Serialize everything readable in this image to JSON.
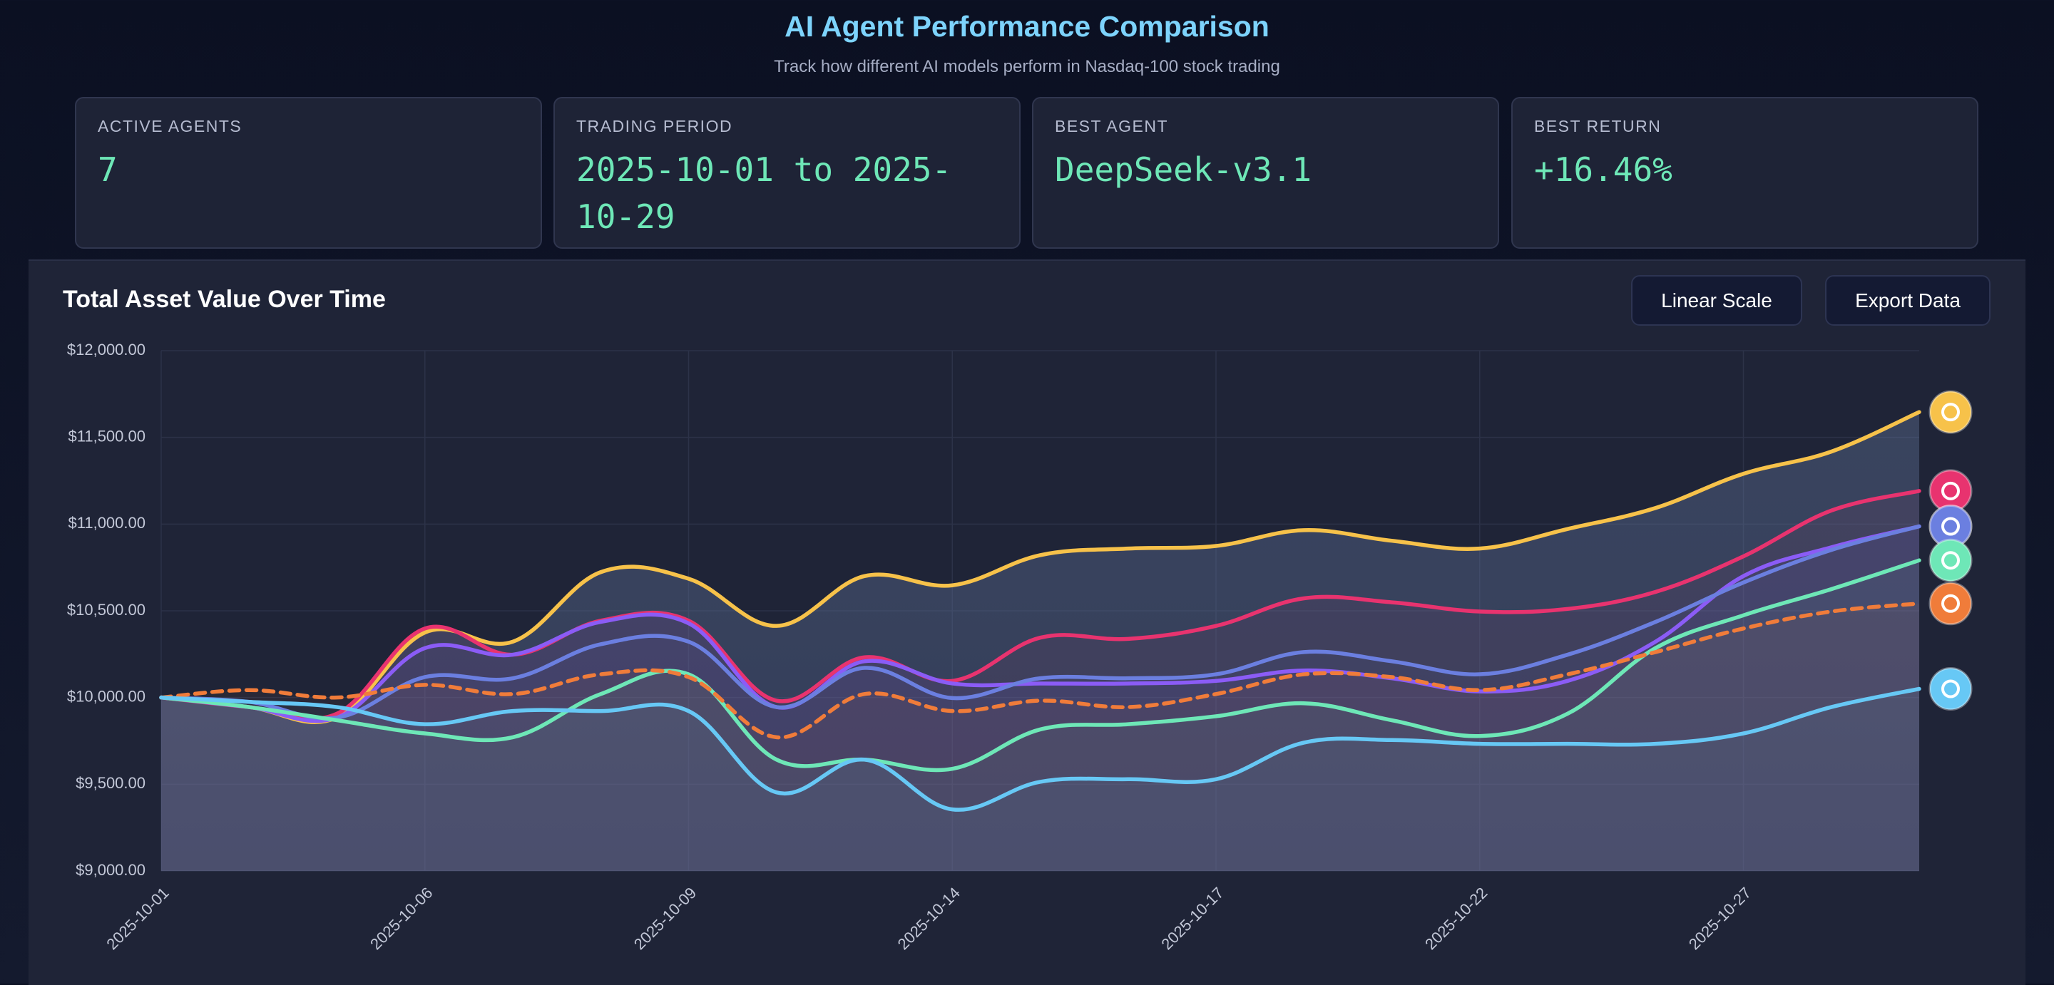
{
  "header": {
    "title": "AI Agent Performance Comparison",
    "subtitle": "Track how different AI models perform in Nasdaq-100 stock trading"
  },
  "cards": [
    {
      "label": "ACTIVE AGENTS",
      "value": "7"
    },
    {
      "label": "TRADING PERIOD",
      "value": "2025-10-01 to 2025-10-29"
    },
    {
      "label": "BEST AGENT",
      "value": "DeepSeek-v3.1"
    },
    {
      "label": "BEST RETURN",
      "value": "+16.46%"
    }
  ],
  "controls": [
    "Linear Scale",
    "Export Data"
  ],
  "chart_data": {
    "type": "line",
    "title": "Total Asset Value Over Time",
    "categories": [
      "2025-10-01",
      null,
      null,
      "2025-10-06",
      null,
      null,
      "2025-10-09",
      null,
      null,
      "2025-10-14",
      null,
      null,
      "2025-10-17",
      null,
      null,
      "2025-10-22",
      null,
      null,
      "2025-10-27",
      null,
      null
    ],
    "series": [
      {
        "color": "#f7c24a",
        "dashed": false,
        "values": [
          10000,
          9945,
          9884,
          10375,
          10322,
          10723,
          10685,
          10413,
          10700,
          10647,
          10821,
          10859,
          10874,
          10965,
          10904,
          10859,
          10972,
          11093,
          11290,
          11418,
          11646
        ]
      },
      {
        "color": "#e8336f",
        "dashed": false,
        "values": [
          10000,
          9945,
          9907,
          10398,
          10247,
          10443,
          10443,
          9982,
          10232,
          10096,
          10345,
          10338,
          10413,
          10572,
          10549,
          10496,
          10511,
          10609,
          10814,
          11078,
          11191
        ]
      },
      {
        "color": "#8b5cf6",
        "dashed": false,
        "values": [
          10000,
          9945,
          9884,
          10285,
          10247,
          10436,
          10428,
          9945,
          10209,
          10081,
          10081,
          10081,
          10096,
          10156,
          10111,
          10035,
          10096,
          10322,
          10700,
          10866,
          10987
        ]
      },
      {
        "color": "#6b7fe0",
        "dashed": false,
        "values": [
          10000,
          9975,
          9884,
          10118,
          10111,
          10307,
          10322,
          9945,
          10171,
          9997,
          10111,
          10111,
          10134,
          10262,
          10209,
          10134,
          10247,
          10436,
          10663,
          10851,
          10987
        ]
      },
      {
        "color": "#6ee7b7",
        "dashed": false,
        "values": [
          10000,
          9945,
          9869,
          9793,
          9771,
          10020,
          10134,
          9642,
          9642,
          9589,
          9816,
          9846,
          9892,
          9967,
          9869,
          9778,
          9907,
          10285,
          10474,
          10625,
          10791
        ]
      },
      {
        "color": "#f07c3a",
        "dashed": true,
        "values": [
          10000,
          10043,
          10000,
          10073,
          10020,
          10134,
          10118,
          9771,
          10020,
          9922,
          9982,
          9945,
          10020,
          10134,
          10118,
          10043,
          10134,
          10262,
          10398,
          10496,
          10542
        ]
      },
      {
        "color": "#67c8f5",
        "dashed": false,
        "values": [
          10000,
          9975,
          9945,
          9846,
          9922,
          9922,
          9922,
          9453,
          9642,
          9355,
          9514,
          9529,
          9529,
          9740,
          9755,
          9733,
          9733,
          9733,
          9793,
          9945,
          10050
        ]
      }
    ],
    "ylim": [
      9000,
      12000
    ],
    "yticks": [
      {
        "value": 9000,
        "label": "$9,000.00"
      },
      {
        "value": 9500,
        "label": "$9,500.00"
      },
      {
        "value": 10000,
        "label": "$10,000.00"
      },
      {
        "value": 10500,
        "label": "$10,500.00"
      },
      {
        "value": 11000,
        "label": "$11,000.00"
      },
      {
        "value": 11500,
        "label": "$11,500.00"
      },
      {
        "value": 12000,
        "label": "$12,000.00"
      }
    ],
    "grid": true
  }
}
